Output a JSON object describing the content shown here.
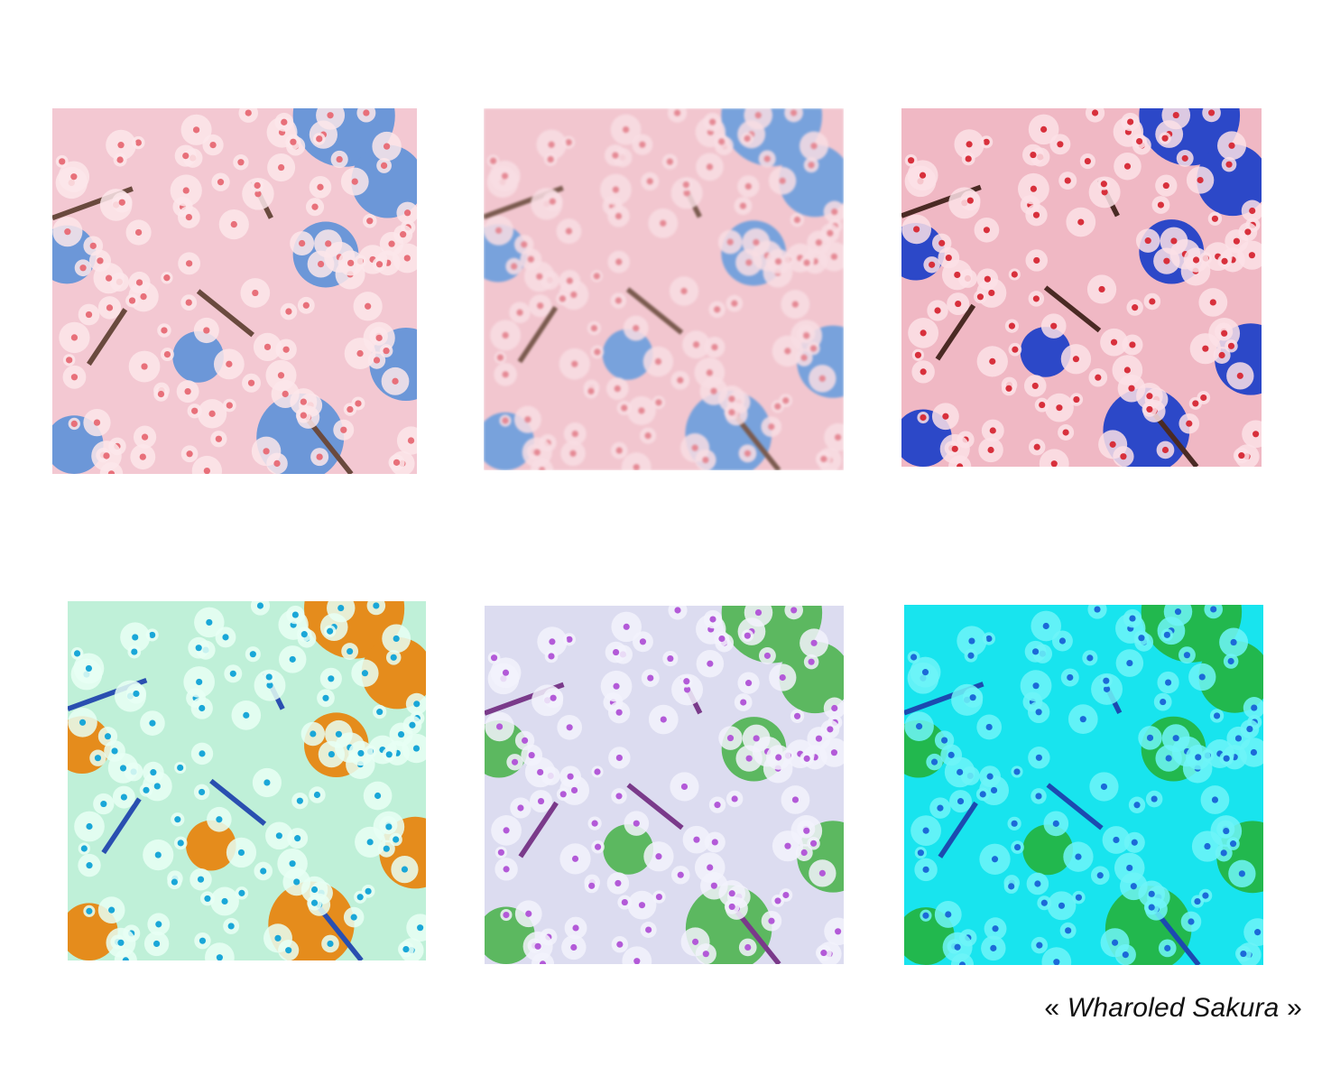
{
  "caption": {
    "open_quote": "«",
    "title": "Wharoled Sakura",
    "close_quote": "»"
  },
  "tiles": [
    {
      "name": "sakura-tile-original-noisy",
      "sky": "#6c97d8",
      "petal": "#f3c8d2",
      "petal_light": "#fbe6ea",
      "center": "#e8707a",
      "branch": "#6a4a3e"
    },
    {
      "name": "sakura-tile-blurred",
      "sky": "#78a2dc",
      "petal": "#f2c6cf",
      "petal_light": "#f8dde3",
      "center": "#e58994",
      "branch": "#7a5a4e"
    },
    {
      "name": "sakura-tile-saturated",
      "sky": "#2c48c8",
      "petal": "#f0b8c4",
      "petal_light": "#fbe0e6",
      "center": "#d8303c",
      "branch": "#4a2a24"
    },
    {
      "name": "sakura-tile-inverted-orange",
      "sky": "#e58c1c",
      "petal": "#bff0d8",
      "petal_light": "#e8fff4",
      "center": "#1aa7d8",
      "branch": "#2a4fb0"
    },
    {
      "name": "sakura-tile-green-lavender",
      "sky": "#5cb860",
      "petal": "#dcdcf0",
      "petal_light": "#f2f2fb",
      "center": "#b35ad8",
      "branch": "#7a3a8a"
    },
    {
      "name": "sakura-tile-green-cyan",
      "sky": "#22b84e",
      "petal": "#18e4ee",
      "petal_light": "#6ff4f8",
      "center": "#1c6ad8",
      "branch": "#1c4ab0"
    }
  ]
}
